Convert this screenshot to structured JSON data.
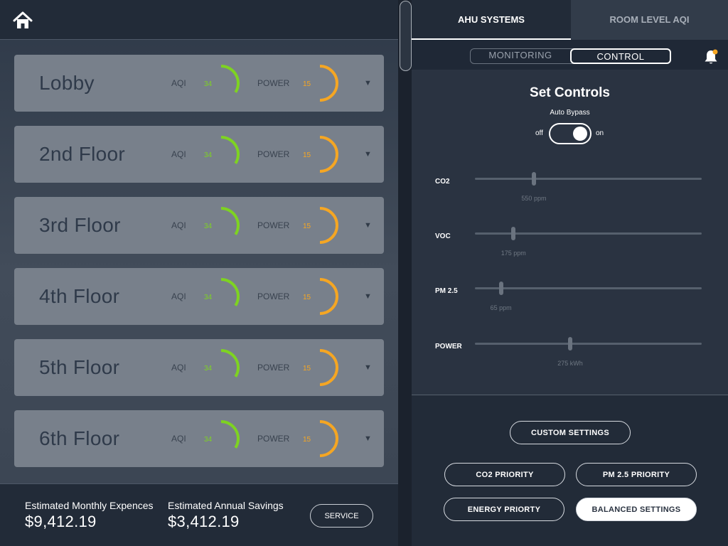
{
  "floors": [
    {
      "name": "Lobby",
      "aqi_label": "AQI",
      "aqi": "34",
      "power_label": "POWER",
      "power": "15"
    },
    {
      "name": "2nd Floor",
      "aqi_label": "AQI",
      "aqi": "34",
      "power_label": "POWER",
      "power": "15"
    },
    {
      "name": "3rd Floor",
      "aqi_label": "AQI",
      "aqi": "34",
      "power_label": "POWER",
      "power": "15"
    },
    {
      "name": "4th Floor",
      "aqi_label": "AQI",
      "aqi": "34",
      "power_label": "POWER",
      "power": "15"
    },
    {
      "name": "5th Floor",
      "aqi_label": "AQI",
      "aqi": "34",
      "power_label": "POWER",
      "power": "15"
    },
    {
      "name": "6th Floor",
      "aqi_label": "AQI",
      "aqi": "34",
      "power_label": "POWER",
      "power": "15"
    }
  ],
  "gauges": {
    "aqi_fraction": 0.34,
    "power_fraction": 0.5,
    "aqi_color": "#7ed321",
    "power_color": "#f5a623"
  },
  "footer": {
    "monthly_label": "Estimated Monthly Expences",
    "monthly_value": "$9,412.19",
    "annual_label": "Estimated Annual Savings",
    "annual_value": "$3,412.19",
    "service_label": "SERVICE"
  },
  "tabs": {
    "ahu": "AHU SYSTEMS",
    "room": "ROOM LEVEL AQI",
    "active": "ahu"
  },
  "segments": {
    "monitoring": "MONITORING",
    "control": "CONTROL",
    "active": "control"
  },
  "controls": {
    "title": "Set Controls",
    "bypass_label": "Auto Bypass",
    "off_label": "off",
    "on_label": "on",
    "bypass_on": true,
    "sliders": [
      {
        "label": "CO2",
        "value_text": "550 ppm",
        "fraction": 0.26
      },
      {
        "label": "VOC",
        "value_text": "175 ppm",
        "fraction": 0.17
      },
      {
        "label": "PM 2.5",
        "value_text": "65 ppm",
        "fraction": 0.115
      },
      {
        "label": "POWER",
        "value_text": "275 kWh",
        "fraction": 0.42
      }
    ]
  },
  "presets": {
    "custom": "CUSTOM SETTINGS",
    "co2": "CO2 PRIORITY",
    "pm": "PM 2.5 PRIORITY",
    "energy": "ENERGY PRIORTY",
    "balanced": "BALANCED SETTINGS",
    "selected": "balanced"
  },
  "colors": {
    "accent_white": "#ffffff",
    "notification_dot": "#f5a623"
  },
  "icons": {
    "home": "home-icon",
    "bell": "bell-icon",
    "caret": "caret-down-icon"
  }
}
